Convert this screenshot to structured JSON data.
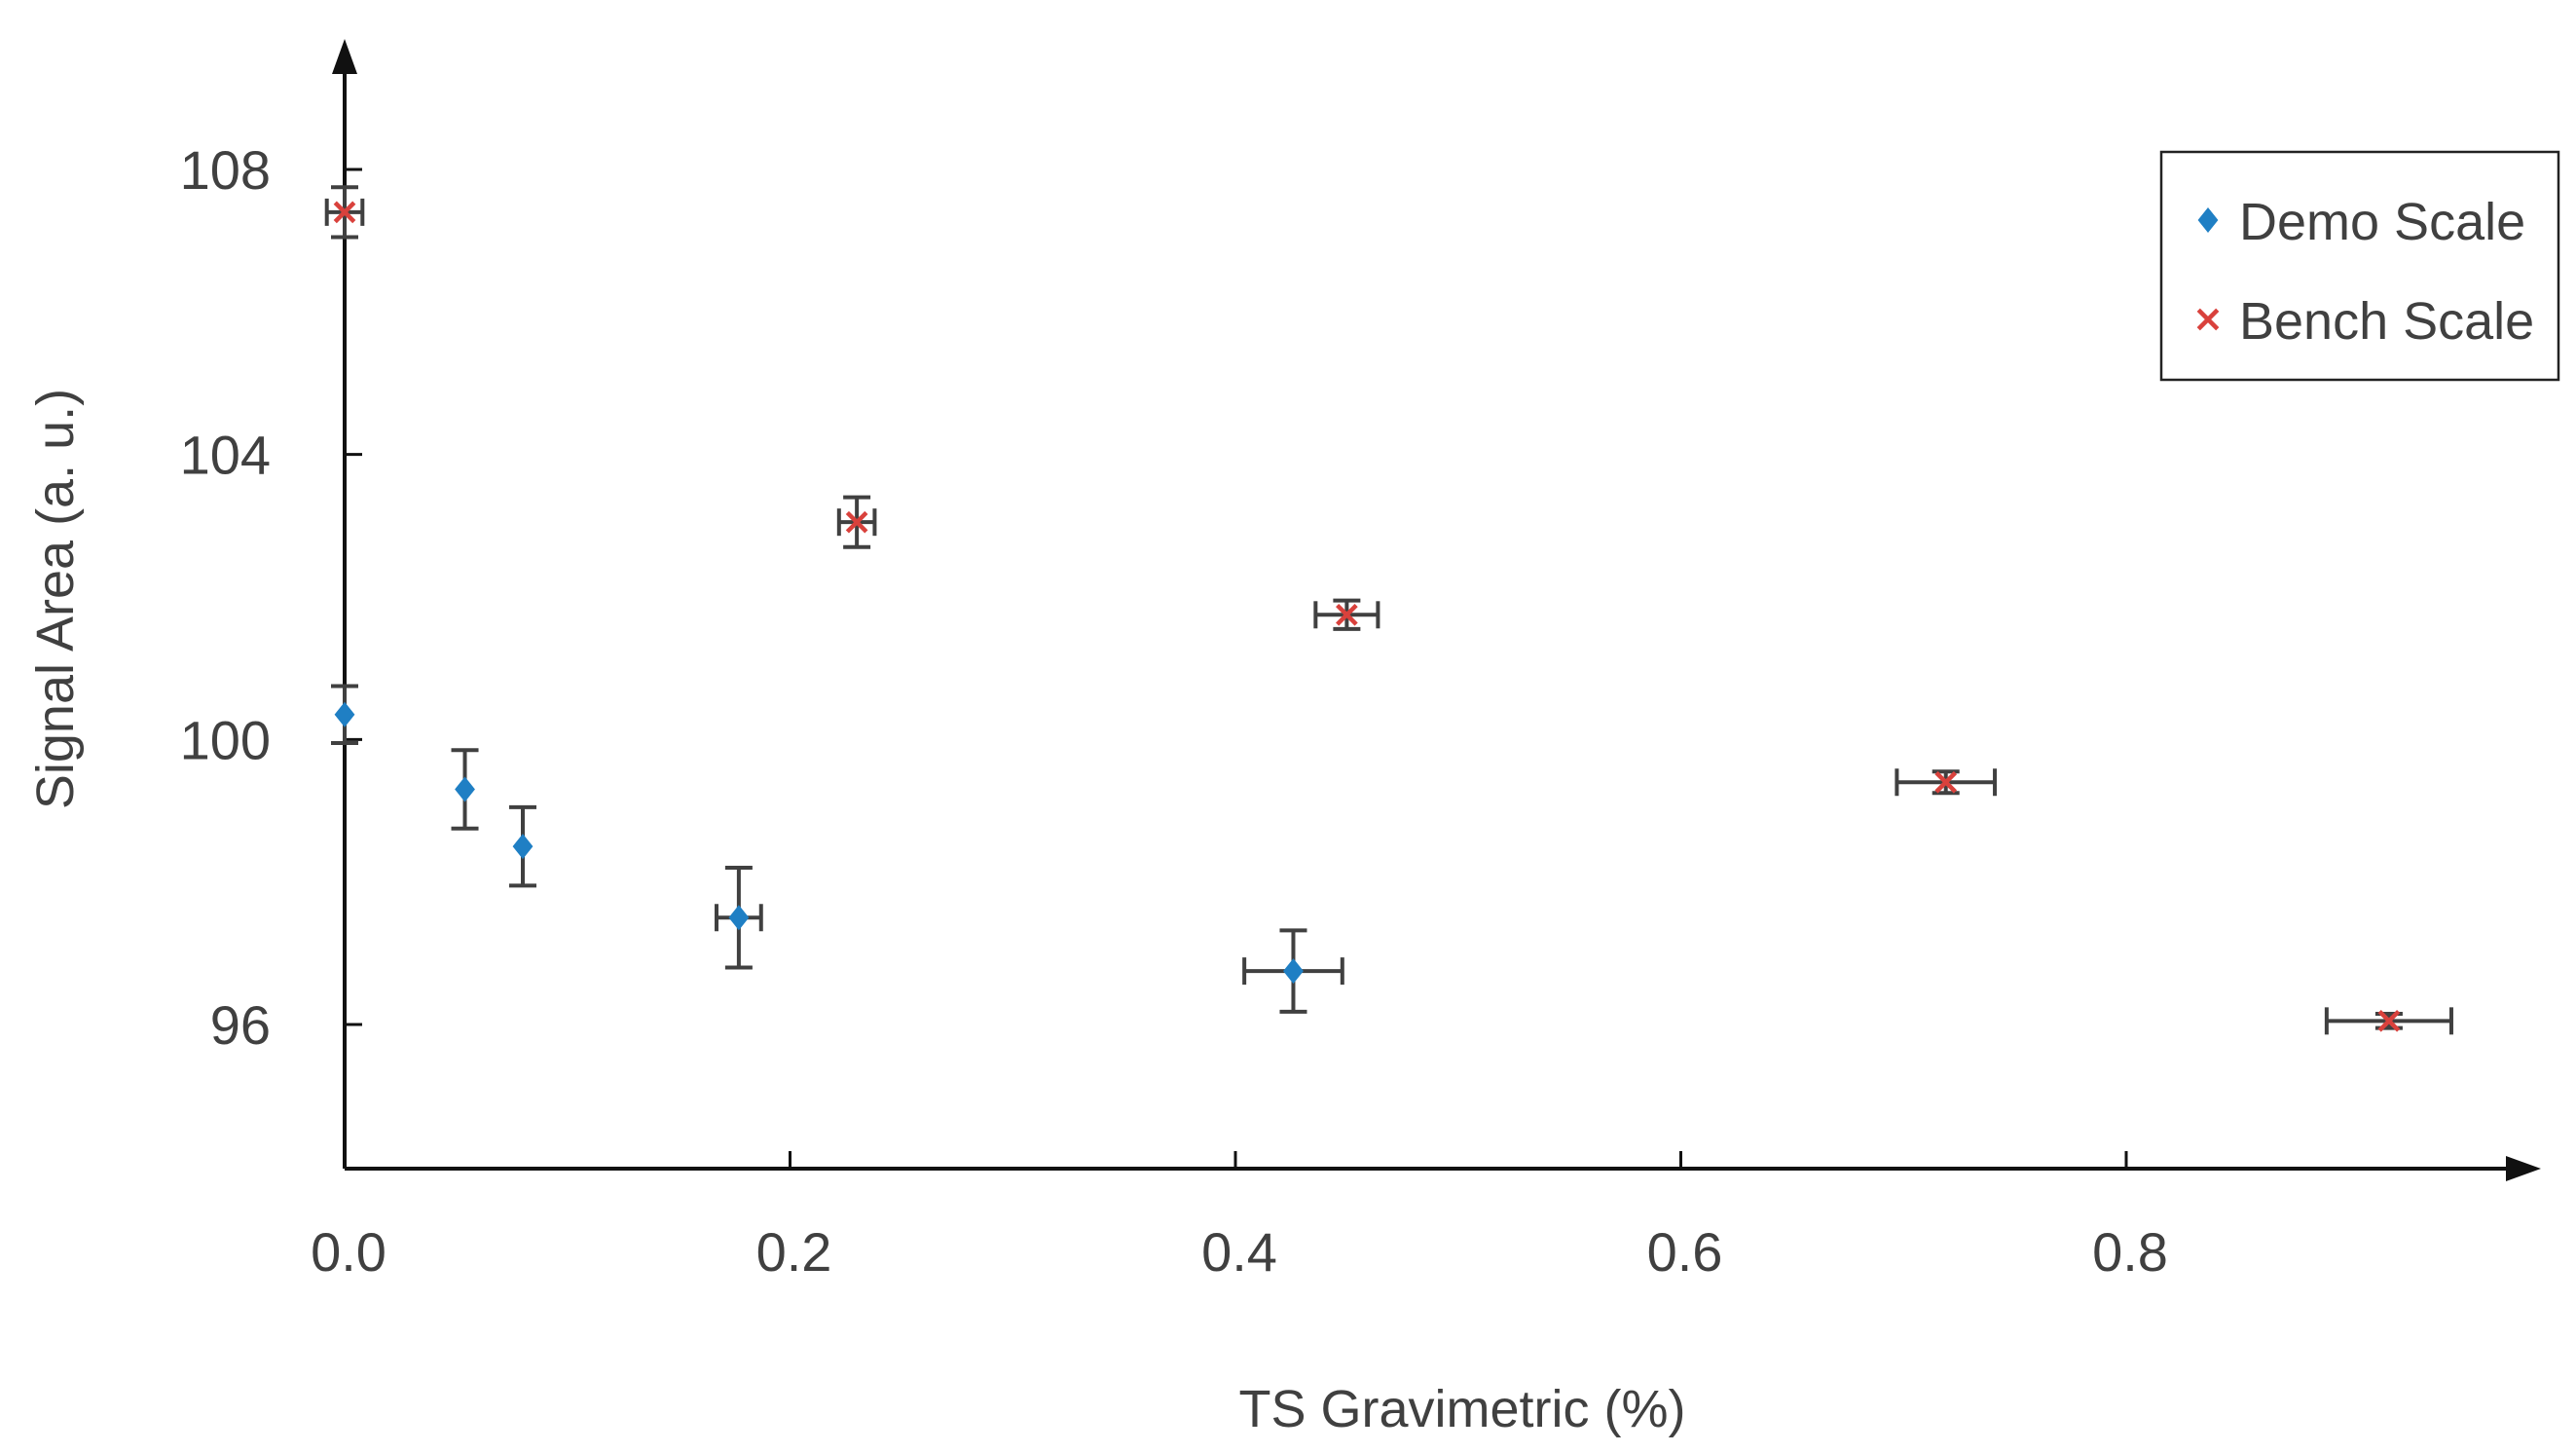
{
  "chart_data": {
    "type": "scatter",
    "xlabel": "TS Gravimetric (%)",
    "ylabel": "Signal Area (a. u.)",
    "xlim": [
      0.0,
      0.98
    ],
    "ylim": [
      94,
      110
    ],
    "x_ticks": [
      0.0,
      0.2,
      0.4,
      0.6,
      0.8
    ],
    "x_tick_labels": [
      "0.0",
      "0.2",
      "0.4",
      "0.6",
      "0.8"
    ],
    "y_ticks": [
      96,
      100,
      104,
      108
    ],
    "y_tick_labels": [
      "96",
      "100",
      "104",
      "108"
    ],
    "grid": false,
    "legend_position": "top-right",
    "series": [
      {
        "name": "Demo Scale",
        "marker": "diamond",
        "color": "#1f7fc4",
        "points": [
          {
            "x": 0.0,
            "y": 100.35,
            "xerr": 0.0,
            "yerr": 0.4
          },
          {
            "x": 0.054,
            "y": 99.3,
            "xerr": 0.0,
            "yerr": 0.55
          },
          {
            "x": 0.08,
            "y": 98.5,
            "xerr": 0.0,
            "yerr": 0.55
          },
          {
            "x": 0.177,
            "y": 97.5,
            "xerr": 0.01,
            "yerr": 0.7
          },
          {
            "x": 0.426,
            "y": 96.75,
            "xerr": 0.022,
            "yerr": 0.57
          }
        ]
      },
      {
        "name": "Bench Scale",
        "marker": "x",
        "color": "#d9413c",
        "points": [
          {
            "x": 0.0,
            "y": 107.4,
            "xerr": 0.008,
            "yerr": 0.35
          },
          {
            "x": 0.23,
            "y": 103.05,
            "xerr": 0.008,
            "yerr": 0.35
          },
          {
            "x": 0.45,
            "y": 101.75,
            "xerr": 0.014,
            "yerr": 0.2
          },
          {
            "x": 0.719,
            "y": 99.4,
            "xerr": 0.022,
            "yerr": 0.15
          },
          {
            "x": 0.918,
            "y": 96.05,
            "xerr": 0.028,
            "yerr": 0.1
          }
        ]
      }
    ]
  }
}
